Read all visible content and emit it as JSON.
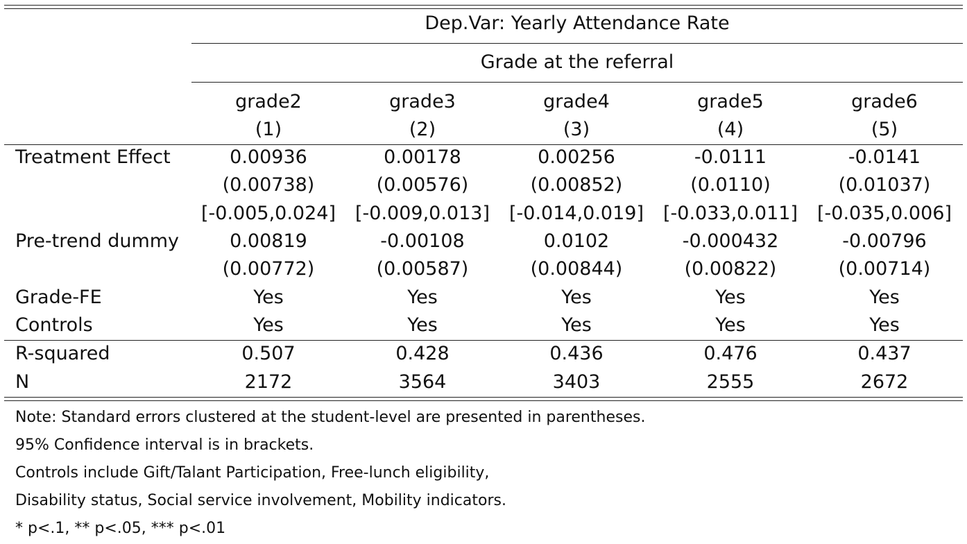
{
  "table": {
    "dep_var": "Dep.Var: Yearly Attendance Rate",
    "group_header": "Grade at the referral",
    "columns": [
      {
        "name": "grade2",
        "num": "(1)"
      },
      {
        "name": "grade3",
        "num": "(2)"
      },
      {
        "name": "grade4",
        "num": "(3)"
      },
      {
        "name": "grade5",
        "num": "(4)"
      },
      {
        "name": "grade6",
        "num": "(5)"
      }
    ],
    "rows": [
      {
        "label": "Treatment Effect",
        "values": [
          "0.00936",
          "0.00178",
          "0.00256",
          "-0.0111",
          "-0.0141"
        ]
      },
      {
        "label": "",
        "values": [
          "(0.00738)",
          "(0.00576)",
          "(0.00852)",
          "(0.0110)",
          "(0.01037)"
        ]
      },
      {
        "label": "",
        "values": [
          "[-0.005,0.024]",
          "[-0.009,0.013]",
          "[-0.014,0.019]",
          "[-0.033,0.011]",
          "[-0.035,0.006]"
        ]
      },
      {
        "label": "Pre-trend dummy",
        "values": [
          "0.00819",
          "-0.00108",
          "0.0102",
          "-0.000432",
          "-0.00796"
        ]
      },
      {
        "label": "",
        "values": [
          "(0.00772)",
          "(0.00587)",
          "(0.00844)",
          "(0.00822)",
          "(0.00714)"
        ]
      },
      {
        "label": "Grade-FE",
        "values": [
          "Yes",
          "Yes",
          "Yes",
          "Yes",
          "Yes"
        ]
      },
      {
        "label": "Controls",
        "values": [
          "Yes",
          "Yes",
          "Yes",
          "Yes",
          "Yes"
        ]
      }
    ],
    "stats": [
      {
        "label": "R-squared",
        "values": [
          "0.507",
          "0.428",
          "0.436",
          "0.476",
          "0.437"
        ]
      },
      {
        "label": "N",
        "values": [
          "2172",
          "3564",
          "3403",
          "2555",
          "2672"
        ]
      }
    ],
    "notes": [
      "Note: Standard errors clustered at the student-level are presented in parentheses.",
      "95% Confidence interval is in brackets.",
      "Controls include Gift/Talant Participation, Free-lunch eligibility,",
      "Disability status, Social service involvement, Mobility indicators.",
      "* p<.1, ** p<.05, *** p<.01"
    ]
  }
}
